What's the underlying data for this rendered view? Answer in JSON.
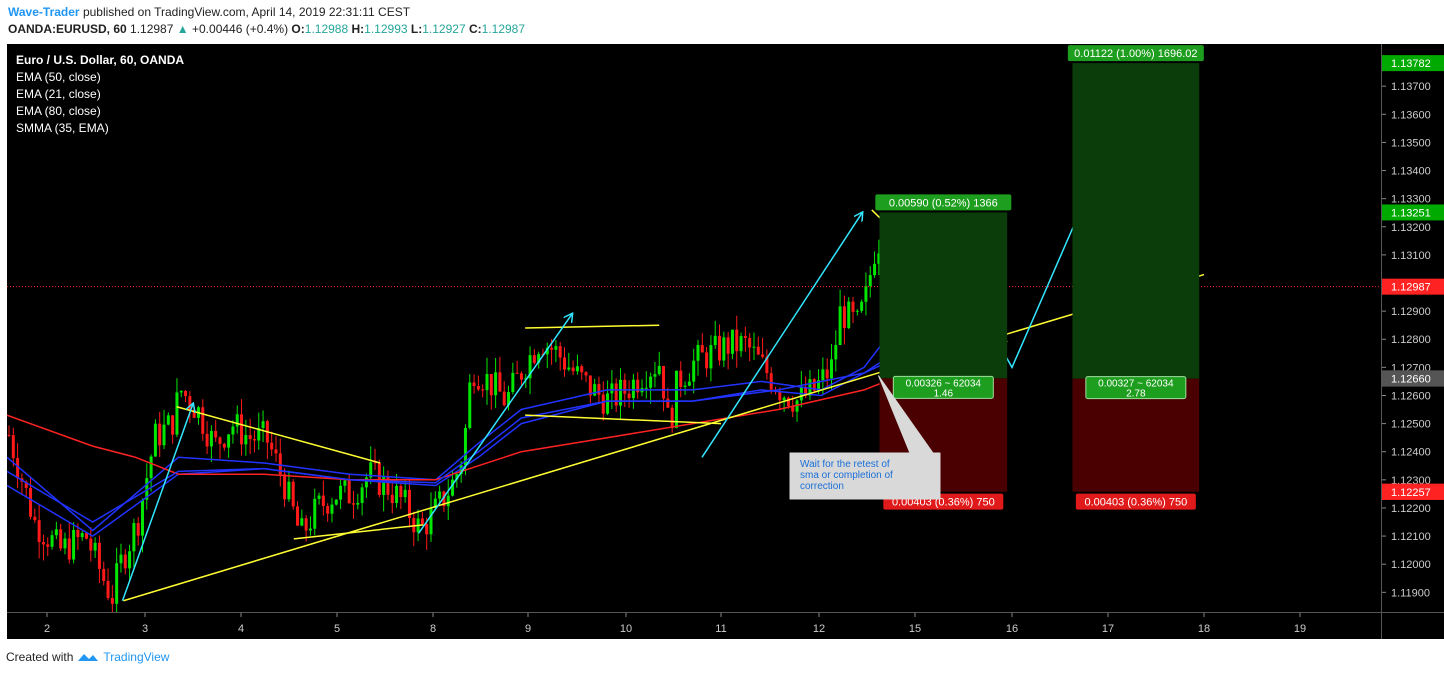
{
  "header": {
    "author": "Wave-Trader",
    "published": "published on TradingView.com, April 14, 2019 22:31:11 CEST",
    "symbol": "OANDA:EURUSD, 60",
    "last": "1.12987",
    "change": "+0.00446 (+0.4%)",
    "o_label": "O:",
    "o": "1.12988",
    "h_label": "H:",
    "h": "1.12993",
    "l_label": "L:",
    "l": "1.12927",
    "c_label": "C:",
    "c": "1.12987"
  },
  "legend": {
    "title": "Euro / U.S. Dollar, 60, OANDA",
    "items": [
      "EMA (50, close)",
      "EMA (21, close)",
      "EMA (80, close)",
      "SMMA (35, EMA)"
    ]
  },
  "footer": {
    "created": "Created with",
    "brand": "TradingView"
  },
  "colors": {
    "background": "#000000",
    "up": "#00e600",
    "down": "#ff1a1a",
    "ema_red": "#ff2222",
    "ema_blue": "#2233ff",
    "trend": "#ffff33",
    "wave": "#33e6ff",
    "target": "#008800",
    "stop": "#cc0000"
  },
  "chart_data": {
    "type": "candlestick",
    "symbol": "EURUSD",
    "timeframe": "60",
    "ylim": [
      1.1183,
      1.1385
    ],
    "y_ticks": [
      "1.11900",
      "1.12000",
      "1.12100",
      "1.12200",
      "1.12300",
      "1.12400",
      "1.12500",
      "1.12600",
      "1.12700",
      "1.12800",
      "1.12900",
      "1.13000",
      "1.13100",
      "1.13200",
      "1.13300",
      "1.13400",
      "1.13500",
      "1.13600",
      "1.13700"
    ],
    "x_ticks": [
      "2",
      "3",
      "4",
      "5",
      "8",
      "9",
      "10",
      "11",
      "12",
      "15",
      "16",
      "17",
      "18",
      "19"
    ],
    "price_labels": [
      {
        "label": "1.13782",
        "value": 1.13782,
        "color": "#00aa00"
      },
      {
        "label": "1.13251",
        "value": 1.13251,
        "color": "#00aa00"
      },
      {
        "label": "1.12987",
        "value": 1.12987,
        "color": "#ff2222"
      },
      {
        "label": "1.12661",
        "value": 1.12661,
        "color": "#555555"
      },
      {
        "label": "1.12660",
        "value": 1.1266,
        "color": "#555555"
      },
      {
        "label": "1.12258",
        "value": 1.12258,
        "color": "#ff2222"
      },
      {
        "label": "1.12257",
        "value": 1.12257,
        "color": "#ff2222"
      }
    ],
    "last_price": 1.12987,
    "close_path": [
      [
        0,
        1.1246
      ],
      [
        3,
        1.1215
      ],
      [
        6,
        1.1205
      ],
      [
        9,
        1.121
      ],
      [
        11,
        1.1195
      ],
      [
        12,
        1.1188
      ],
      [
        13,
        1.12
      ],
      [
        15,
        1.1215
      ],
      [
        17,
        1.1245
      ],
      [
        19,
        1.125
      ],
      [
        20,
        1.1262
      ],
      [
        22,
        1.1255
      ],
      [
        24,
        1.1242
      ],
      [
        26,
        1.125
      ],
      [
        28,
        1.1245
      ],
      [
        30,
        1.1245
      ],
      [
        32,
        1.123
      ],
      [
        34,
        1.121
      ],
      [
        36,
        1.122
      ],
      [
        38,
        1.1225
      ],
      [
        40,
        1.1225
      ],
      [
        42,
        1.1232
      ],
      [
        44,
        1.1228
      ],
      [
        46,
        1.1222
      ],
      [
        48,
        1.1212
      ],
      [
        50,
        1.122
      ],
      [
        52,
        1.123
      ],
      [
        53,
        1.124
      ],
      [
        54,
        1.127
      ],
      [
        56,
        1.1265
      ],
      [
        58,
        1.1258
      ],
      [
        60,
        1.127
      ],
      [
        62,
        1.128
      ],
      [
        64,
        1.1275
      ],
      [
        66,
        1.1268
      ],
      [
        68,
        1.1262
      ],
      [
        70,
        1.1258
      ],
      [
        72,
        1.1262
      ],
      [
        74,
        1.1268
      ],
      [
        76,
        1.1272
      ],
      [
        77,
        1.1248
      ],
      [
        78,
        1.1265
      ],
      [
        80,
        1.1272
      ],
      [
        82,
        1.1275
      ],
      [
        84,
        1.1278
      ],
      [
        86,
        1.1278
      ],
      [
        88,
        1.127
      ],
      [
        90,
        1.1262
      ],
      [
        92,
        1.1258
      ],
      [
        94,
        1.1262
      ],
      [
        96,
        1.127
      ],
      [
        97,
        1.129
      ],
      [
        99,
        1.1285
      ],
      [
        100,
        1.1295
      ],
      [
        101,
        1.1312
      ],
      [
        102,
        1.1318
      ],
      [
        103,
        1.1308
      ],
      [
        104,
        1.13
      ],
      [
        105,
        1.1298
      ]
    ],
    "emas": [
      {
        "name": "EMA (50, close)",
        "color": "blue",
        "points": [
          [
            0,
            1.1238
          ],
          [
            10,
            1.1212
          ],
          [
            20,
            1.1238
          ],
          [
            30,
            1.1236
          ],
          [
            40,
            1.1232
          ],
          [
            50,
            1.123
          ],
          [
            55,
            1.1243
          ],
          [
            60,
            1.1255
          ],
          [
            70,
            1.1262
          ],
          [
            80,
            1.1262
          ],
          [
            88,
            1.1265
          ],
          [
            95,
            1.1262
          ],
          [
            100,
            1.127
          ],
          [
            105,
            1.129
          ]
        ]
      },
      {
        "name": "EMA (21, close)",
        "color": "blue",
        "points": [
          [
            0,
            1.1228
          ],
          [
            10,
            1.121
          ],
          [
            20,
            1.1232
          ],
          [
            30,
            1.1234
          ],
          [
            40,
            1.123
          ],
          [
            50,
            1.1228
          ],
          [
            55,
            1.1238
          ],
          [
            60,
            1.125
          ],
          [
            70,
            1.1258
          ],
          [
            80,
            1.1258
          ],
          [
            88,
            1.1262
          ],
          [
            95,
            1.126
          ],
          [
            100,
            1.1268
          ],
          [
            105,
            1.1275
          ]
        ]
      },
      {
        "name": "EMA (80, close)",
        "color": "red",
        "points": [
          [
            0,
            1.1253
          ],
          [
            10,
            1.1242
          ],
          [
            15,
            1.1238
          ],
          [
            20,
            1.1232
          ],
          [
            30,
            1.1232
          ],
          [
            40,
            1.123
          ],
          [
            50,
            1.123
          ],
          [
            60,
            1.124
          ],
          [
            70,
            1.1245
          ],
          [
            80,
            1.125
          ],
          [
            90,
            1.1255
          ],
          [
            100,
            1.1262
          ],
          [
            105,
            1.1268
          ]
        ]
      },
      {
        "name": "SMMA (35, EMA)",
        "color": "blue",
        "points": [
          [
            0,
            1.1233
          ],
          [
            10,
            1.1215
          ],
          [
            20,
            1.1233
          ],
          [
            30,
            1.1234
          ],
          [
            40,
            1.123
          ],
          [
            50,
            1.1229
          ],
          [
            55,
            1.124
          ],
          [
            60,
            1.1252
          ],
          [
            70,
            1.1258
          ],
          [
            80,
            1.1258
          ],
          [
            90,
            1.1262
          ],
          [
            100,
            1.1268
          ],
          [
            105,
            1.1278
          ]
        ]
      }
    ],
    "positions": [
      {
        "target_label": "0.00590 (0.52%) 1366",
        "mid_label_1": "0.00326 ~ 62034",
        "mid_label_2": "1.46",
        "stop_label": "0.00403 (0.36%) 750",
        "top": 1.13251,
        "entry": 1.12661,
        "bottom": 1.12258,
        "day_start": 15.63,
        "day_end": 16.95
      },
      {
        "target_label": "0.01122 (1.00%) 1696.02",
        "mid_label_1": "0.00327 ~ 62034",
        "mid_label_2": "2.78",
        "stop_label": "0.00403 (0.36%) 750",
        "top": 1.13782,
        "entry": 1.1266,
        "bottom": 1.12258,
        "day_start": 17.63,
        "day_end": 18.95
      }
    ],
    "callout": "Wait for the retest of sma or completion of correction"
  }
}
